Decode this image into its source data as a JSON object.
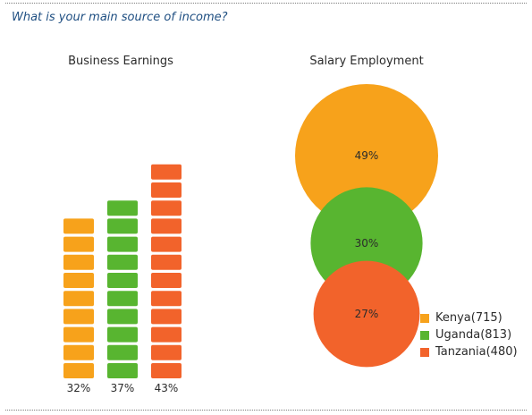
{
  "question": "What is your main source of income?",
  "colors": {
    "kenya": "#f7a21b",
    "uganda": "#58b530",
    "tanzania": "#f2632b"
  },
  "chart_data": [
    {
      "type": "bar",
      "title": "Business Earnings",
      "categories": [
        "Kenya",
        "Uganda",
        "Tanzania"
      ],
      "values": [
        32,
        37,
        43
      ],
      "labels": [
        "32%",
        "37%",
        "43%"
      ],
      "colors": [
        "#f7a21b",
        "#58b530",
        "#f2632b"
      ]
    },
    {
      "type": "bubble",
      "title": "Salary Employment",
      "categories": [
        "Kenya",
        "Uganda",
        "Tanzania"
      ],
      "values": [
        49,
        30,
        27
      ],
      "labels": [
        "49%",
        "30%",
        "27%"
      ],
      "colors": [
        "#f7a21b",
        "#58b530",
        "#f2632b"
      ]
    }
  ],
  "legend": [
    {
      "label": "Kenya(715)",
      "color": "#f7a21b"
    },
    {
      "label": "Uganda(813)",
      "color": "#58b530"
    },
    {
      "label": "Tanzania(480)",
      "color": "#f2632b"
    }
  ]
}
